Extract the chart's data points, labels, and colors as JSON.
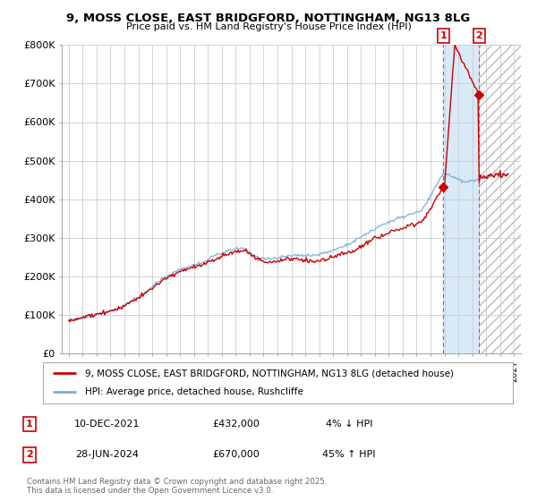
{
  "title_line1": "9, MOSS CLOSE, EAST BRIDGFORD, NOTTINGHAM, NG13 8LG",
  "title_line2": "Price paid vs. HM Land Registry's House Price Index (HPI)",
  "ylabel_ticks": [
    "£0",
    "£100K",
    "£200K",
    "£300K",
    "£400K",
    "£500K",
    "£600K",
    "£700K",
    "£800K"
  ],
  "ylim": [
    0,
    800000
  ],
  "xlim_start": 1994.5,
  "xlim_end": 2027.5,
  "legend_line1": "9, MOSS CLOSE, EAST BRIDGFORD, NOTTINGHAM, NG13 8LG (detached house)",
  "legend_line2": "HPI: Average price, detached house, Rushcliffe",
  "annotation1_label": "1",
  "annotation1_date": "10-DEC-2021",
  "annotation1_price": "£432,000",
  "annotation1_hpi": "4% ↓ HPI",
  "annotation2_label": "2",
  "annotation2_date": "28-JUN-2024",
  "annotation2_price": "£670,000",
  "annotation2_hpi": "45% ↑ HPI",
  "copyright": "Contains HM Land Registry data © Crown copyright and database right 2025.\nThis data is licensed under the Open Government Licence v3.0.",
  "sale1_x": 2021.92,
  "sale1_y": 432000,
  "sale2_x": 2024.49,
  "sale2_y": 670000,
  "hpi_color": "#7aaddd",
  "price_color": "#cc0000",
  "sale_marker_color": "#cc0000",
  "annotation_box_color": "#cc0000",
  "shade_color": "#d8eaf8",
  "hatch_color": "#cccccc",
  "grid_color": "#cccccc",
  "background_color": "#ffffff"
}
